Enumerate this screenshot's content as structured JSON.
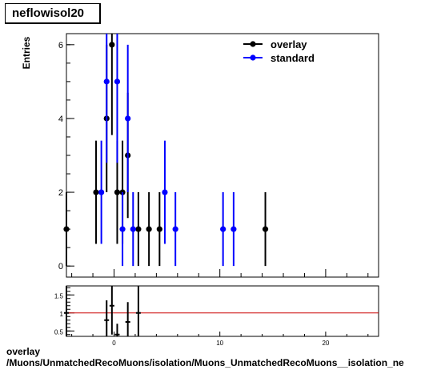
{
  "histogram_title": "neflowisol20",
  "footer": {
    "line1": "overlay",
    "line2": "/Muons/UnmatchedRecoMuons/isolation/Muons_UnmatchedRecoMuons__isolation_ne"
  },
  "colors": {
    "overlay": "#000000",
    "standard": "#0000ff",
    "ratio_line": "#cc0000"
  },
  "chart_data": [
    {
      "type": "scatter",
      "ylabel": "Entries",
      "xlabel": "",
      "xlim": [
        -4.5,
        25
      ],
      "ylim": [
        -0.3,
        6.3
      ],
      "yticks": [
        0,
        2,
        4,
        6
      ],
      "xticks": [
        0,
        10,
        20
      ],
      "legend": "top-right",
      "series": [
        {
          "name": "overlay",
          "color": "#000000",
          "points": [
            {
              "x": -4.5,
              "y": 1,
              "err": 1
            },
            {
              "x": -1.7,
              "y": 2,
              "err": 1.4
            },
            {
              "x": -0.7,
              "y": 4,
              "err": 2
            },
            {
              "x": -0.2,
              "y": 6,
              "err": 2.45
            },
            {
              "x": 0.3,
              "y": 2,
              "err": 1.4
            },
            {
              "x": 0.8,
              "y": 2,
              "err": 1.4
            },
            {
              "x": 1.3,
              "y": 3,
              "err": 1.7
            },
            {
              "x": 2.3,
              "y": 1,
              "err": 1
            },
            {
              "x": 3.3,
              "y": 1,
              "err": 1
            },
            {
              "x": 4.3,
              "y": 1,
              "err": 1
            },
            {
              "x": 14.3,
              "y": 1,
              "err": 1
            }
          ]
        },
        {
          "name": "standard",
          "color": "#0000ff",
          "points": [
            {
              "x": -1.2,
              "y": 2,
              "err": 1.4
            },
            {
              "x": -0.7,
              "y": 5,
              "err": 2.2
            },
            {
              "x": 0.3,
              "y": 5,
              "err": 2.2
            },
            {
              "x": 0.8,
              "y": 1,
              "err": 1
            },
            {
              "x": 1.3,
              "y": 4,
              "err": 2
            },
            {
              "x": 1.8,
              "y": 1,
              "err": 1
            },
            {
              "x": 4.8,
              "y": 2,
              "err": 1.4
            },
            {
              "x": 5.8,
              "y": 1,
              "err": 1
            },
            {
              "x": 10.3,
              "y": 1,
              "err": 1
            },
            {
              "x": 11.3,
              "y": 1,
              "err": 1
            }
          ]
        }
      ]
    },
    {
      "type": "scatter",
      "xlim": [
        -4.5,
        25
      ],
      "ylim": [
        0.35,
        1.75
      ],
      "yticks": [
        0.5,
        1,
        1.5
      ],
      "ytick_labels": [
        "0.5",
        "1",
        "1.5"
      ],
      "xticks": [
        0,
        10,
        20
      ],
      "xtick_labels": [
        "0",
        "10",
        "20"
      ],
      "reference_line": 1,
      "series": [
        {
          "name": "ratio",
          "color": "#000000",
          "points": [
            {
              "x": -4.5,
              "y": 1.0,
              "err": 0.8
            },
            {
              "x": -0.7,
              "y": 0.8,
              "err": 0.55
            },
            {
              "x": -0.2,
              "y": 1.2,
              "err": 0.8
            },
            {
              "x": 0.3,
              "y": 0.4,
              "err": 0.3
            },
            {
              "x": 1.3,
              "y": 0.75,
              "err": 0.55
            },
            {
              "x": 2.3,
              "y": 1.0,
              "err": 0.8
            }
          ]
        }
      ]
    }
  ]
}
